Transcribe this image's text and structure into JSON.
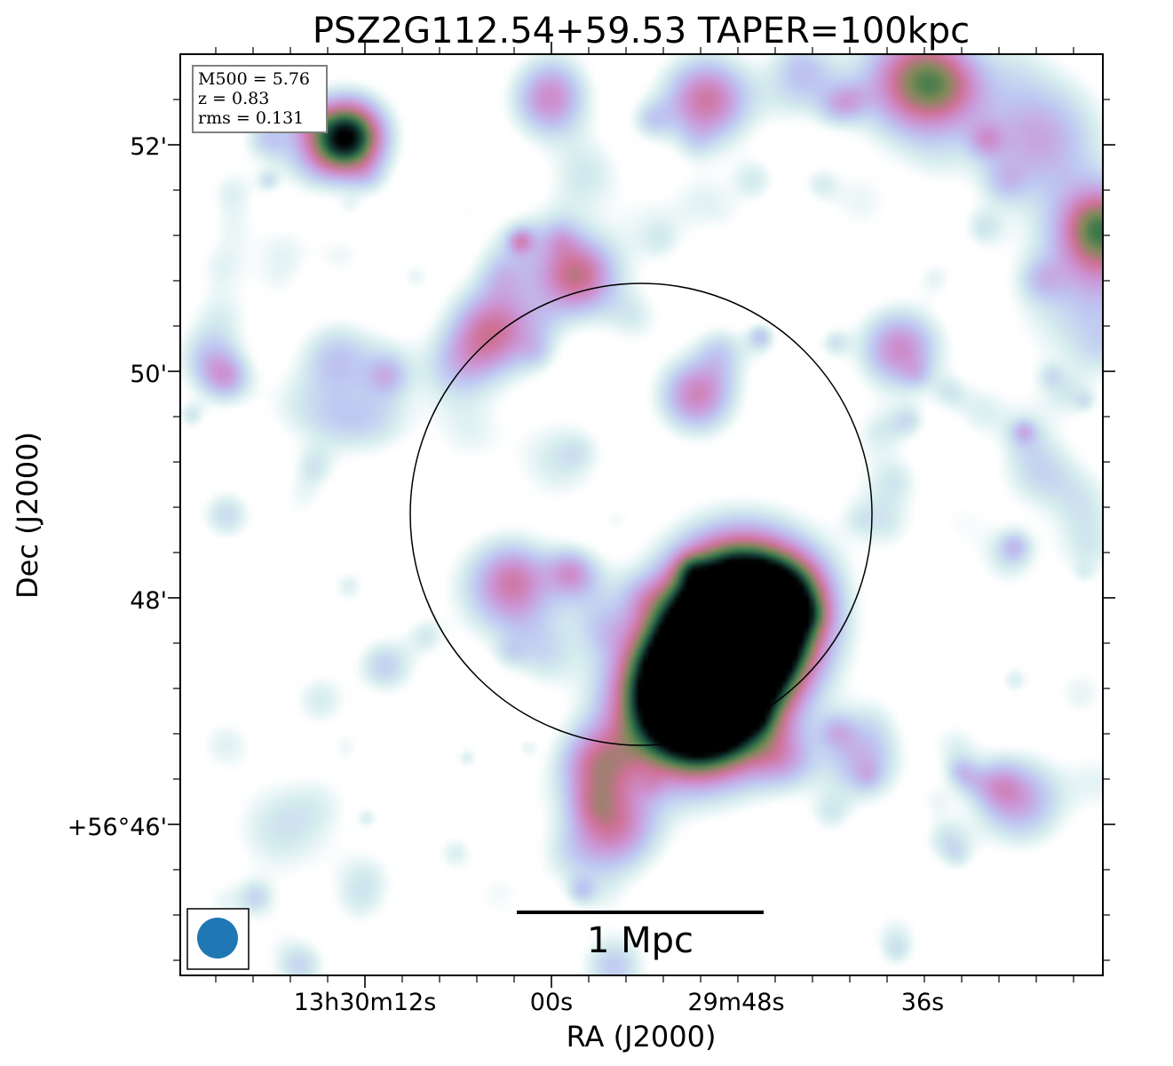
{
  "chart_data": {
    "type": "heatmap",
    "title": "PSZ2G112.54+59.53 TAPER=100kpc",
    "xlabel": "RA (J2000)",
    "ylabel": "Dec (J2000)",
    "x_tick_labels": [
      "13h30m12s",
      "00s",
      "29m48s",
      "36s"
    ],
    "y_tick_labels": [
      "52'",
      "50'",
      "48'",
      "+56°46'"
    ],
    "info_box": [
      "M500 = 5.76",
      "z = 0.83",
      "rms = 0.131"
    ],
    "scale_bar_label": "1 Mpc",
    "colormap": "cubehelix-like (white → light blue → pink → green → black)",
    "beam_color": "#1f77b4",
    "circle": "centered on cluster (R500 aperture)",
    "sources": [
      {
        "name": "blob-nw",
        "x": 0.18,
        "y": 0.09,
        "peak": 1.0,
        "r": 0.03
      },
      {
        "name": "blob-n1",
        "x": 0.4,
        "y": 0.05,
        "peak": 0.45,
        "r": 0.03
      },
      {
        "name": "blob-n2",
        "x": 0.57,
        "y": 0.05,
        "peak": 0.55,
        "r": 0.035
      },
      {
        "name": "blob-ne",
        "x": 0.8,
        "y": 0.03,
        "peak": 0.65,
        "r": 0.045
      },
      {
        "name": "blob-ne2",
        "x": 0.93,
        "y": 0.09,
        "peak": 0.4,
        "r": 0.05
      },
      {
        "name": "blob-e",
        "x": 1.0,
        "y": 0.19,
        "peak": 0.55,
        "r": 0.035
      },
      {
        "name": "blob-c1",
        "x": 0.43,
        "y": 0.24,
        "peak": 0.6,
        "r": 0.032
      },
      {
        "name": "blob-c2",
        "x": 0.34,
        "y": 0.3,
        "peak": 0.55,
        "r": 0.035
      },
      {
        "name": "blob-c3",
        "x": 0.56,
        "y": 0.37,
        "peak": 0.5,
        "r": 0.03
      },
      {
        "name": "blob-e2",
        "x": 0.78,
        "y": 0.32,
        "peak": 0.48,
        "r": 0.032
      },
      {
        "name": "blob-w1",
        "x": 0.17,
        "y": 0.33,
        "peak": 0.3,
        "r": 0.03
      },
      {
        "name": "blob-w0",
        "x": 0.03,
        "y": 0.33,
        "peak": 0.25,
        "r": 0.025
      },
      {
        "name": "blob-sw",
        "x": 0.35,
        "y": 0.58,
        "peak": 0.35,
        "r": 0.04
      },
      {
        "name": "core-1",
        "x": 0.61,
        "y": 0.61,
        "peak": 1.8,
        "r": 0.055
      },
      {
        "name": "core-2",
        "x": 0.56,
        "y": 0.7,
        "peak": 1.8,
        "r": 0.055
      },
      {
        "name": "blob-s1",
        "x": 0.45,
        "y": 0.77,
        "peak": 0.45,
        "r": 0.03
      },
      {
        "name": "blob-s2",
        "x": 0.47,
        "y": 0.84,
        "peak": 0.5,
        "r": 0.035
      },
      {
        "name": "blob-se",
        "x": 0.74,
        "y": 0.77,
        "peak": 0.35,
        "r": 0.03
      },
      {
        "name": "blob-se2",
        "x": 0.91,
        "y": 0.81,
        "peak": 0.4,
        "r": 0.035
      },
      {
        "name": "blob-e3",
        "x": 0.93,
        "y": 0.45,
        "peak": 0.25,
        "r": 0.03
      },
      {
        "name": "blob-w2",
        "x": 0.05,
        "y": 0.5,
        "peak": 0.25,
        "r": 0.02
      },
      {
        "name": "blob-s3",
        "x": 0.47,
        "y": 0.99,
        "peak": 0.3,
        "r": 0.025
      },
      {
        "name": "blob-sw2",
        "x": 0.13,
        "y": 0.99,
        "peak": 0.25,
        "r": 0.02
      },
      {
        "name": "blob-e4",
        "x": 0.99,
        "y": 0.26,
        "peak": 0.3,
        "r": 0.06
      },
      {
        "name": "blob-cn",
        "x": 0.44,
        "y": 0.13,
        "peak": 0.2,
        "r": 0.03
      },
      {
        "name": "blob-mid",
        "x": 0.41,
        "y": 0.44,
        "peak": 0.2,
        "r": 0.035
      },
      {
        "name": "blob-sw3",
        "x": 0.11,
        "y": 0.84,
        "peak": 0.22,
        "r": 0.04
      }
    ]
  }
}
